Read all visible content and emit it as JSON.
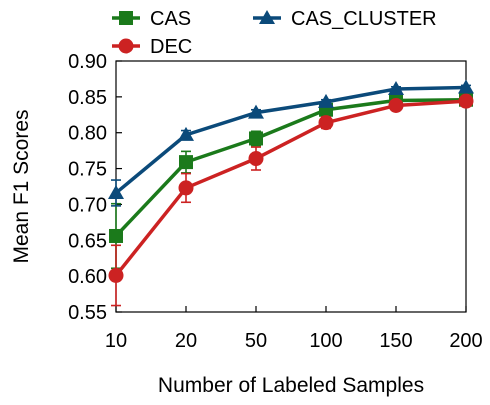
{
  "chart_data": {
    "type": "line",
    "xlabel": "Number of Labeled Samples",
    "ylabel": "Mean F1 Scores",
    "categories": [
      "10",
      "20",
      "50",
      "100",
      "150",
      "200"
    ],
    "ylim": [
      0.55,
      0.9
    ],
    "yticks": [
      "0.55",
      "0.60",
      "0.65",
      "0.70",
      "0.75",
      "0.80",
      "0.85",
      "0.90"
    ],
    "grid": false,
    "legend_position": "top",
    "series": [
      {
        "name": "CAS",
        "color": "#1b7a1b",
        "marker": "square",
        "values": [
          0.656,
          0.759,
          0.792,
          0.832,
          0.845,
          0.846
        ],
        "errors": [
          0.045,
          0.015,
          0.01,
          0.008,
          0.004,
          0.004
        ]
      },
      {
        "name": "DEC",
        "color": "#cc2222",
        "marker": "circle",
        "values": [
          0.601,
          0.723,
          0.764,
          0.814,
          0.838,
          0.844
        ],
        "errors": [
          0.042,
          0.02,
          0.016,
          0.008,
          0.004,
          0.004
        ]
      },
      {
        "name": "CAS_CLUSTER",
        "color": "#0b4a7a",
        "marker": "triangle",
        "values": [
          0.716,
          0.797,
          0.828,
          0.843,
          0.861,
          0.863
        ],
        "errors": [
          0.018,
          0.006,
          0.004,
          0.003,
          0.003,
          0.003
        ]
      }
    ]
  }
}
